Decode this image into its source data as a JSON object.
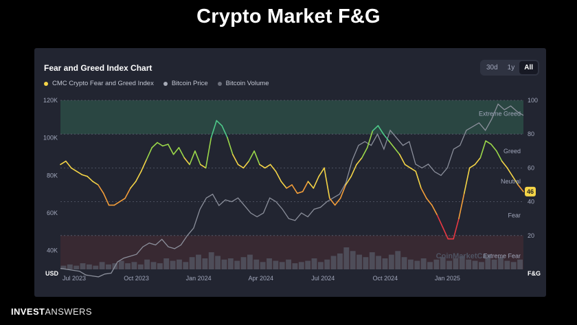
{
  "page": {
    "title": "Crypto Market F&G"
  },
  "card": {
    "title": "Fear and Greed Index Chart",
    "ranges": [
      "30d",
      "1y",
      "All"
    ],
    "active_range": "All",
    "legend": [
      {
        "label": "CMC Crypto Fear and Greed Index",
        "color": "#f5d547"
      },
      {
        "label": "Bitcoin Price",
        "color": "#a7abb7"
      },
      {
        "label": "Bitcoin Volume",
        "color": "#6c707c"
      }
    ],
    "watermark": "CoinMarketCap"
  },
  "chart_data": {
    "type": "line",
    "title": "Fear and Greed Index Chart",
    "x_ticks": [
      "Jul 2023",
      "Oct 2023",
      "Jan 2024",
      "Apr 2024",
      "Jul 2024",
      "Oct 2024",
      "Jan 2025"
    ],
    "left_axis": {
      "unit_label": "USD",
      "ticks": [
        "40K",
        "60K",
        "80K",
        "100K",
        "120K"
      ],
      "range": [
        30000,
        120000
      ]
    },
    "right_axis": {
      "unit_label": "F&G",
      "ticks": [
        "20",
        "40",
        "60",
        "80",
        "100"
      ],
      "range": [
        0,
        100
      ]
    },
    "zones": [
      {
        "label": "Extreme Greed",
        "from": 80,
        "to": 100,
        "color": "#2b4a45"
      },
      {
        "label": "Greed",
        "y": 70
      },
      {
        "label": "Neutral",
        "y": 52
      },
      {
        "label": "Fear",
        "y": 32
      },
      {
        "label": "Extreme Fear",
        "from": 0,
        "to": 20,
        "color": "#3b2a33"
      }
    ],
    "current_value": "46",
    "series": [
      {
        "name": "CMC Crypto Fear and Greed Index",
        "axis": "right",
        "values": [
          62,
          64,
          60,
          58,
          56,
          55,
          52,
          50,
          45,
          38,
          38,
          40,
          42,
          48,
          52,
          58,
          65,
          72,
          75,
          73,
          74,
          68,
          72,
          66,
          62,
          70,
          62,
          60,
          78,
          88,
          85,
          78,
          68,
          62,
          60,
          64,
          70,
          62,
          60,
          62,
          58,
          52,
          48,
          50,
          45,
          46,
          52,
          48,
          55,
          60,
          42,
          38,
          42,
          50,
          55,
          62,
          66,
          72,
          82,
          85,
          80,
          76,
          72,
          68,
          62,
          60,
          58,
          48,
          42,
          38,
          32,
          25,
          18,
          18,
          30,
          45,
          60,
          62,
          66,
          76,
          74,
          70,
          64,
          60,
          55,
          50,
          46
        ]
      },
      {
        "name": "Bitcoin Price",
        "axis": "left",
        "values": [
          30500,
          30000,
          29500,
          29000,
          27000,
          26500,
          26000,
          27500,
          28000,
          34000,
          36000,
          37000,
          38000,
          42000,
          44000,
          43000,
          46000,
          42000,
          41000,
          43000,
          48000,
          52000,
          62000,
          68000,
          70000,
          64000,
          67000,
          66000,
          68000,
          64000,
          60000,
          58000,
          60000,
          68000,
          66000,
          62000,
          57000,
          56000,
          60000,
          58000,
          62000,
          63000,
          66000,
          68000,
          70000,
          76000,
          88000,
          96000,
          98000,
          96000,
          102000,
          94000,
          104000,
          100000,
          96000,
          98000,
          86000,
          84000,
          86000,
          82000,
          80000,
          84000,
          94000,
          96000,
          104000,
          106000,
          108000,
          104000,
          110000,
          118000,
          115000,
          117000,
          114000,
          112000
        ]
      },
      {
        "name": "Bitcoin Volume",
        "axis": "volume",
        "values": [
          3,
          4,
          3,
          5,
          4,
          3,
          6,
          4,
          5,
          7,
          5,
          6,
          4,
          8,
          6,
          5,
          9,
          7,
          8,
          6,
          10,
          12,
          9,
          14,
          11,
          8,
          9,
          7,
          10,
          12,
          8,
          6,
          9,
          7,
          6,
          8,
          5,
          6,
          7,
          9,
          6,
          8,
          11,
          13,
          18,
          15,
          12,
          10,
          14,
          11,
          9,
          12,
          15,
          10,
          8,
          7,
          9,
          6,
          8,
          10,
          7,
          9,
          11,
          8,
          7,
          6,
          9,
          8,
          10,
          7,
          6,
          8
        ]
      }
    ]
  },
  "footer": {
    "brand_strong": "INVEST",
    "brand_light": "ANSWERS"
  }
}
